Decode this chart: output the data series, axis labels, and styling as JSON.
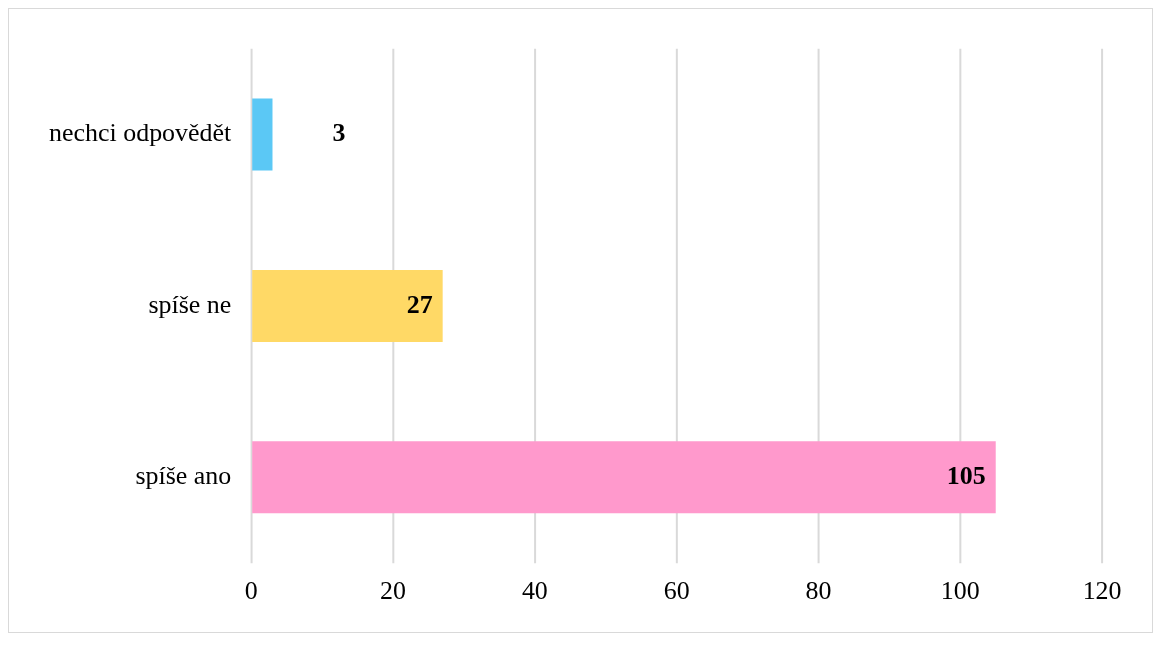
{
  "chart_data": {
    "type": "bar",
    "orientation": "horizontal",
    "categories": [
      "nechci odpovědět",
      "spíše ne",
      "spíše ano"
    ],
    "values": [
      3,
      27,
      105
    ],
    "colors": [
      "#5bc8f5",
      "#ffd966",
      "#ff99cc"
    ],
    "xlim": [
      0,
      120
    ],
    "xticks": [
      0,
      20,
      40,
      60,
      80,
      100,
      120
    ],
    "grid": "x",
    "data_labels": true,
    "legend": false
  }
}
